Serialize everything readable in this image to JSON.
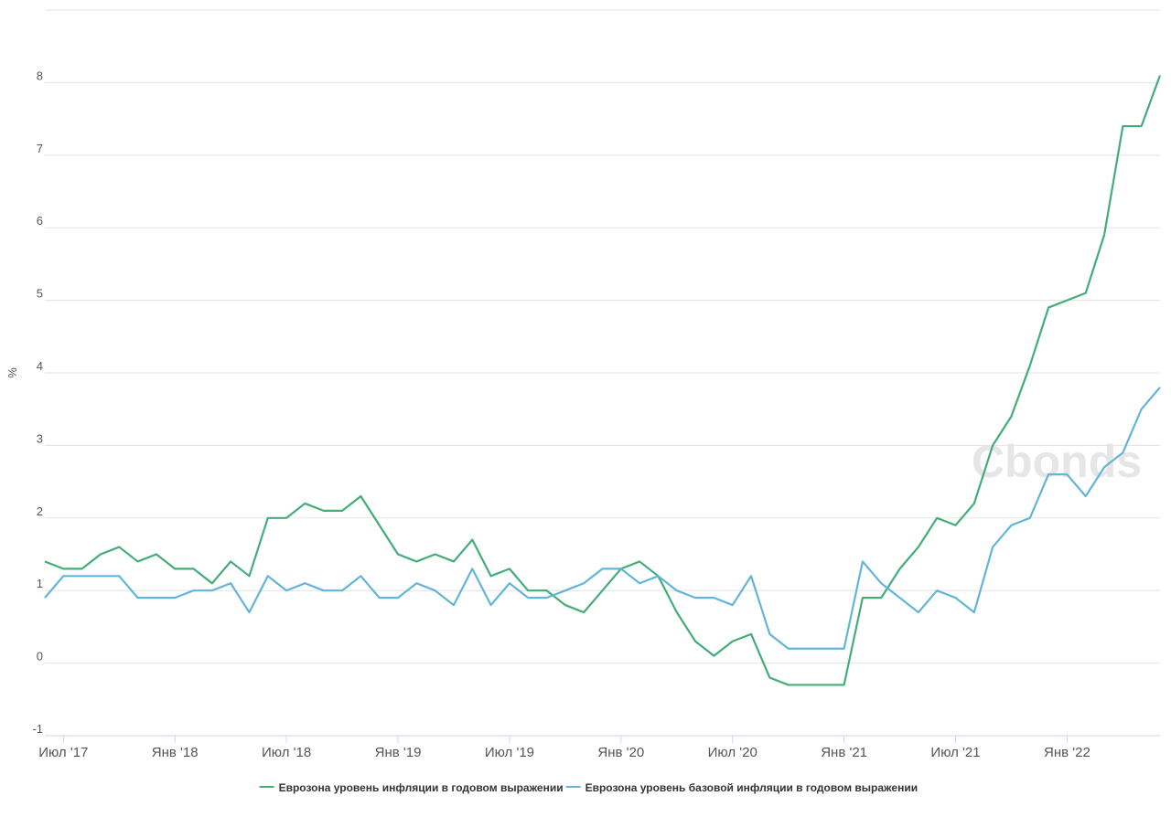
{
  "chart_data": {
    "type": "line",
    "y_label": "%",
    "watermark": "Cbonds",
    "categories": [
      null,
      "Июл '17",
      null,
      null,
      null,
      null,
      null,
      "Янв '18",
      null,
      null,
      null,
      null,
      null,
      "Июл '18",
      null,
      null,
      null,
      null,
      null,
      "Янв '19",
      null,
      null,
      null,
      null,
      null,
      "Июл '19",
      null,
      null,
      null,
      null,
      null,
      "Янв '20",
      null,
      null,
      null,
      null,
      null,
      "Июл '20",
      null,
      null,
      null,
      null,
      null,
      "Янв '21",
      null,
      null,
      null,
      null,
      null,
      "Июл '21",
      null,
      null,
      null,
      null,
      null,
      "Янв '22",
      null,
      null,
      null,
      null,
      null
    ],
    "series": [
      {
        "name": "Еврозона уровень инфляции в годовом выражении",
        "color": "#43ad78",
        "values": [
          1.4,
          1.3,
          1.3,
          1.5,
          1.6,
          1.4,
          1.5,
          1.3,
          1.3,
          1.1,
          1.4,
          1.2,
          2.0,
          2.0,
          2.2,
          2.1,
          2.1,
          2.3,
          1.9,
          1.5,
          1.4,
          1.5,
          1.4,
          1.7,
          1.2,
          1.3,
          1.0,
          1.0,
          0.8,
          0.7,
          1.0,
          1.3,
          1.4,
          1.2,
          0.7,
          0.3,
          0.1,
          0.3,
          0.4,
          -0.2,
          -0.3,
          -0.3,
          -0.3,
          -0.3,
          0.9,
          0.9,
          1.3,
          1.6,
          2.0,
          1.9,
          2.2,
          3.0,
          3.4,
          4.1,
          4.9,
          5.0,
          5.1,
          5.9,
          7.4,
          7.4,
          8.1
        ]
      },
      {
        "name": "Еврозона уровень базовой инфляции в годовом выражении",
        "color": "#63b5d8",
        "values": [
          0.9,
          1.2,
          1.2,
          1.2,
          1.2,
          0.9,
          0.9,
          0.9,
          1.0,
          1.0,
          1.1,
          0.7,
          1.2,
          1.0,
          1.1,
          1.0,
          1.0,
          1.2,
          0.9,
          0.9,
          1.1,
          1.0,
          0.8,
          1.3,
          0.8,
          1.1,
          0.9,
          0.9,
          1.0,
          1.1,
          1.3,
          1.3,
          1.1,
          1.2,
          1.0,
          0.9,
          0.9,
          0.8,
          1.2,
          0.4,
          0.2,
          0.2,
          0.2,
          0.2,
          1.4,
          1.1,
          0.9,
          0.7,
          1.0,
          0.9,
          0.7,
          1.6,
          1.9,
          2.0,
          2.6,
          2.6,
          2.3,
          2.7,
          2.9,
          3.5,
          3.8
        ]
      }
    ],
    "ylim": [
      -1,
      9
    ],
    "yticks": [
      -1,
      0,
      1,
      2,
      3,
      4,
      5,
      6,
      7,
      8
    ],
    "grid": true
  }
}
